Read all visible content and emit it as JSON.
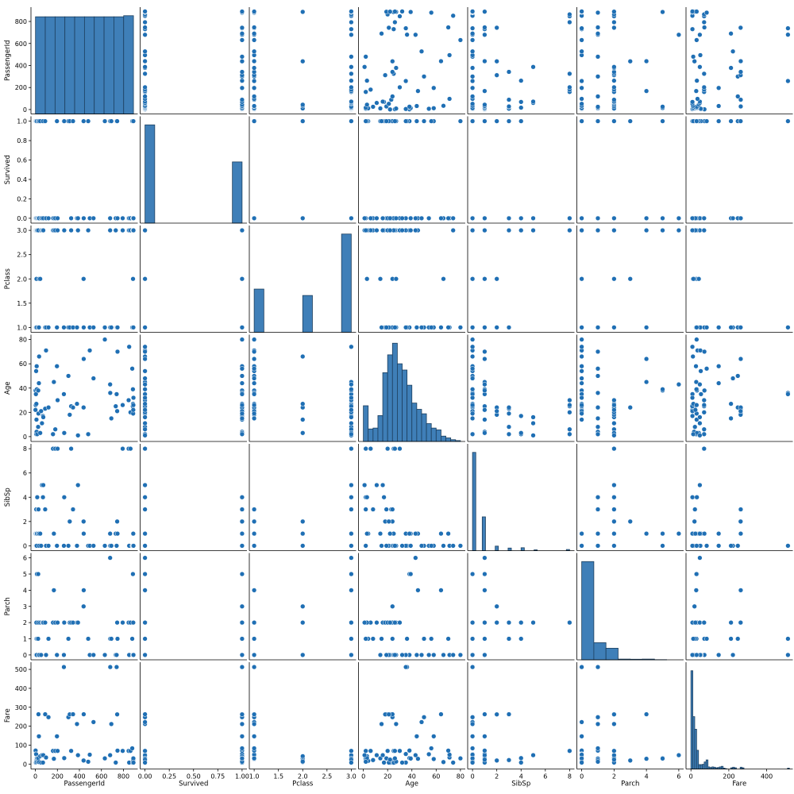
{
  "chart_data": {
    "type": "scatter",
    "title": "",
    "variables": [
      "PassengerId",
      "Survived",
      "Pclass",
      "Age",
      "SibSp",
      "Parch",
      "Fare"
    ],
    "colors": {
      "marker": "#1f6fb4",
      "marker_edge": "#ffffff",
      "bar": "#3f7fb8",
      "bar_edge": "#1d3f5e",
      "axis": "#000000"
    },
    "axes": [
      {
        "name": "PassengerId",
        "range": [
          -40,
          930
        ],
        "ticks": [
          0,
          200,
          400,
          600,
          800
        ],
        "tick_labels": [
          "0",
          "200",
          "400",
          "600",
          "800"
        ]
      },
      {
        "name": "Survived",
        "range": [
          -0.05,
          1.05
        ],
        "ticks": [
          0,
          0.25,
          0.5,
          0.75,
          1
        ],
        "tick_labels": [
          "0.00",
          "0.25",
          "0.50",
          "0.75",
          "1.00"
        ],
        "tick_labels_y": [
          "0.0",
          "",
          "0.5",
          "",
          "1.0"
        ],
        "tick_labels_y_full": [
          "0.0",
          "0.2",
          "0.4",
          "0.6",
          "0.8",
          "1.0"
        ]
      },
      {
        "name": "Pclass",
        "range": [
          0.9,
          3.1
        ],
        "ticks": [
          1,
          1.5,
          2,
          2.5,
          3
        ],
        "tick_labels": [
          "1.0",
          "1.5",
          "2.0",
          "2.5",
          "3.0"
        ]
      },
      {
        "name": "Age",
        "range": [
          -4,
          84
        ],
        "ticks": [
          0,
          20,
          40,
          60,
          80
        ],
        "tick_labels": [
          "0",
          "20",
          "40",
          "60",
          "80"
        ]
      },
      {
        "name": "SibSp",
        "range": [
          -0.4,
          8.4
        ],
        "ticks": [
          0,
          2,
          4,
          6,
          8
        ],
        "tick_labels": [
          "0",
          "2",
          "4",
          "6",
          "8"
        ]
      },
      {
        "name": "Parch",
        "range": [
          -0.3,
          6.3
        ],
        "ticks": [
          0,
          1,
          2,
          3,
          4,
          5,
          6
        ],
        "tick_labels": [
          "0",
          "1",
          "2",
          "3",
          "4",
          "5",
          "6"
        ]
      },
      {
        "name": "Fare",
        "range": [
          -26,
          538
        ],
        "ticks": [
          0,
          100,
          200,
          300,
          400,
          500
        ],
        "tick_labels": [
          "0",
          "100",
          "200",
          "300",
          "400",
          "500"
        ]
      }
    ],
    "x_ticks": {
      "PassengerId": [
        "0",
        "200",
        "400",
        "600",
        "800"
      ],
      "Survived": [
        "0.00",
        "0.25",
        "0.50",
        "0.75",
        "1.00"
      ],
      "Pclass": [
        "1.0",
        "1.5",
        "2.0",
        "2.5",
        "3.0"
      ],
      "Age": [
        "0",
        "20",
        "40",
        "60",
        "80"
      ],
      "SibSp": [
        "0",
        "2",
        "4",
        "6",
        "8"
      ],
      "Parch": [
        "0",
        "2",
        "4",
        "6"
      ],
      "Fare": [
        "0",
        "200",
        "400"
      ]
    },
    "y_ticks": {
      "PassengerId": [
        "0",
        "200",
        "400",
        "600",
        "800"
      ],
      "Survived": [
        "0.0",
        "0.2",
        "0.4",
        "0.6",
        "0.8",
        "1.0"
      ],
      "Pclass": [
        "1.0",
        "1.5",
        "2.0",
        "2.5",
        "3.0"
      ],
      "Age": [
        "0",
        "20",
        "40",
        "60",
        "80"
      ],
      "SibSp": [
        "0",
        "2",
        "4",
        "6",
        "8"
      ],
      "Parch": [
        "0",
        "1",
        "2",
        "3",
        "4",
        "5",
        "6"
      ],
      "Fare": [
        "0",
        "100",
        "200",
        "300",
        "400",
        "500"
      ]
    },
    "histograms": {
      "PassengerId": {
        "bins": [
          1,
          90,
          179,
          268,
          357,
          446,
          535,
          624,
          713,
          802,
          891
        ],
        "counts": [
          89,
          89,
          89,
          89,
          89,
          89,
          89,
          89,
          89,
          90
        ]
      },
      "Survived": {
        "bins": [
          0,
          0.1,
          0.2,
          0.3,
          0.4,
          0.5,
          0.6,
          0.7,
          0.8,
          0.9,
          1.0
        ],
        "counts": [
          549,
          0,
          0,
          0,
          0,
          0,
          0,
          0,
          0,
          342
        ]
      },
      "Pclass": {
        "bins": [
          1,
          1.2,
          1.4,
          1.6,
          1.8,
          2.0,
          2.2,
          2.4,
          2.6,
          2.8,
          3.0
        ],
        "counts": [
          216,
          0,
          0,
          0,
          0,
          184,
          0,
          0,
          0,
          491
        ]
      },
      "Age": {
        "bins": [
          0,
          4,
          8,
          12,
          16,
          20,
          24,
          28,
          32,
          36,
          40,
          44,
          48,
          52,
          56,
          60,
          64,
          68,
          72,
          76,
          80
        ],
        "counts": [
          40,
          14,
          15,
          29,
          77,
          97,
          110,
          87,
          80,
          63,
          43,
          36,
          31,
          20,
          15,
          13,
          6,
          4,
          2,
          1
        ]
      },
      "SibSp": {
        "bins": [
          0,
          0.27,
          0.53,
          0.8,
          1.07,
          1.33,
          1.6,
          1.87,
          2.13,
          2.4,
          2.67,
          2.93,
          3.2,
          3.47,
          3.73,
          4.0,
          4.27,
          4.53,
          4.8,
          5.07,
          5.33,
          5.6,
          5.87,
          6.13,
          6.4,
          6.67,
          6.93,
          7.2,
          7.47,
          7.73,
          8.0
        ],
        "counts": [
          608,
          0,
          0,
          209,
          0,
          0,
          0,
          28,
          0,
          0,
          0,
          16,
          0,
          0,
          0,
          18,
          0,
          0,
          0,
          5,
          0,
          0,
          0,
          0,
          0,
          0,
          0,
          0,
          0,
          7
        ]
      },
      "Parch": {
        "bins": [
          0,
          0.75,
          1.5,
          2.25,
          3.0,
          3.75,
          4.5,
          5.25,
          6.0
        ],
        "counts": [
          678,
          118,
          80,
          5,
          4,
          5,
          1,
          0
        ]
      },
      "Fare": {
        "bins": [
          0,
          10,
          20,
          30,
          40,
          50,
          60,
          70,
          80,
          90,
          100,
          110,
          120,
          130,
          140,
          150,
          160,
          170,
          180,
          190,
          200,
          210,
          220,
          230,
          240,
          250,
          260,
          270,
          280,
          290,
          300,
          310,
          320,
          330,
          340,
          350,
          360,
          370,
          380,
          390,
          400,
          410,
          420,
          430,
          440,
          450,
          460,
          470,
          480,
          490,
          500,
          510,
          520
        ],
        "counts": [
          336,
          179,
          136,
          64,
          15,
          15,
          16,
          24,
          31,
          7,
          5,
          7,
          6,
          4,
          5,
          7,
          9,
          3,
          1,
          0,
          0,
          4,
          6,
          4,
          0,
          0,
          6,
          4,
          0,
          0,
          0,
          0,
          0,
          0,
          0,
          0,
          0,
          0,
          0,
          0,
          0,
          0,
          0,
          0,
          0,
          0,
          0,
          0,
          0,
          0,
          0,
          3
        ]
      }
    },
    "points": [
      {
        "PassengerId": 1,
        "Survived": 0,
        "Pclass": 3,
        "Age": 22,
        "SibSp": 1,
        "Parch": 0,
        "Fare": 7.25
      },
      {
        "PassengerId": 2,
        "Survived": 1,
        "Pclass": 1,
        "Age": 38,
        "SibSp": 1,
        "Parch": 0,
        "Fare": 71.28
      },
      {
        "PassengerId": 3,
        "Survived": 1,
        "Pclass": 3,
        "Age": 26,
        "SibSp": 0,
        "Parch": 0,
        "Fare": 7.93
      },
      {
        "PassengerId": 4,
        "Survived": 1,
        "Pclass": 1,
        "Age": 35,
        "SibSp": 1,
        "Parch": 0,
        "Fare": 53.1
      },
      {
        "PassengerId": 5,
        "Survived": 0,
        "Pclass": 3,
        "Age": 35,
        "SibSp": 0,
        "Parch": 0,
        "Fare": 8.05
      },
      {
        "PassengerId": 7,
        "Survived": 0,
        "Pclass": 1,
        "Age": 54,
        "SibSp": 0,
        "Parch": 0,
        "Fare": 51.86
      },
      {
        "PassengerId": 8,
        "Survived": 0,
        "Pclass": 3,
        "Age": 2,
        "SibSp": 3,
        "Parch": 1,
        "Fare": 21.08
      },
      {
        "PassengerId": 9,
        "Survived": 1,
        "Pclass": 3,
        "Age": 27,
        "SibSp": 0,
        "Parch": 2,
        "Fare": 11.13
      },
      {
        "PassengerId": 10,
        "Survived": 1,
        "Pclass": 2,
        "Age": 14,
        "SibSp": 1,
        "Parch": 0,
        "Fare": 30.07
      },
      {
        "PassengerId": 11,
        "Survived": 1,
        "Pclass": 3,
        "Age": 4,
        "SibSp": 1,
        "Parch": 1,
        "Fare": 16.7
      },
      {
        "PassengerId": 12,
        "Survived": 1,
        "Pclass": 1,
        "Age": 58,
        "SibSp": 0,
        "Parch": 0,
        "Fare": 26.55
      },
      {
        "PassengerId": 14,
        "Survived": 0,
        "Pclass": 3,
        "Age": 39,
        "SibSp": 1,
        "Parch": 5,
        "Fare": 31.28
      },
      {
        "PassengerId": 17,
        "Survived": 0,
        "Pclass": 3,
        "Age": 2,
        "SibSp": 4,
        "Parch": 1,
        "Fare": 29.13
      },
      {
        "PassengerId": 25,
        "Survived": 0,
        "Pclass": 3,
        "Age": 8,
        "SibSp": 3,
        "Parch": 1,
        "Fare": 21.08
      },
      {
        "PassengerId": 26,
        "Survived": 1,
        "Pclass": 3,
        "Age": 38,
        "SibSp": 1,
        "Parch": 5,
        "Fare": 31.39
      },
      {
        "PassengerId": 28,
        "Survived": 0,
        "Pclass": 1,
        "Age": 19,
        "SibSp": 3,
        "Parch": 2,
        "Fare": 263
      },
      {
        "PassengerId": 32,
        "Survived": 1,
        "Pclass": 1,
        "Age": 44,
        "SibSp": 1,
        "Parch": 0,
        "Fare": 146.52
      },
      {
        "PassengerId": 34,
        "Survived": 0,
        "Pclass": 2,
        "Age": 66,
        "SibSp": 0,
        "Parch": 0,
        "Fare": 10.5
      },
      {
        "PassengerId": 44,
        "Survived": 1,
        "Pclass": 2,
        "Age": 3,
        "SibSp": 1,
        "Parch": 2,
        "Fare": 41.58
      },
      {
        "PassengerId": 52,
        "Survived": 0,
        "Pclass": 3,
        "Age": 21,
        "SibSp": 0,
        "Parch": 0,
        "Fare": 7.8
      },
      {
        "PassengerId": 60,
        "Survived": 0,
        "Pclass": 3,
        "Age": 11,
        "SibSp": 5,
        "Parch": 2,
        "Fare": 46.9
      },
      {
        "PassengerId": 69,
        "Survived": 1,
        "Pclass": 3,
        "Age": 17,
        "SibSp": 4,
        "Parch": 2,
        "Fare": 7.93
      },
      {
        "PassengerId": 72,
        "Survived": 0,
        "Pclass": 3,
        "Age": 16,
        "SibSp": 5,
        "Parch": 2,
        "Fare": 46.9
      },
      {
        "PassengerId": 89,
        "Survived": 1,
        "Pclass": 1,
        "Age": 23,
        "SibSp": 3,
        "Parch": 2,
        "Fare": 263
      },
      {
        "PassengerId": 97,
        "Survived": 0,
        "Pclass": 1,
        "Age": 71,
        "SibSp": 0,
        "Parch": 0,
        "Fare": 34.65
      },
      {
        "PassengerId": 119,
        "Survived": 0,
        "Pclass": 1,
        "Age": 24,
        "SibSp": 0,
        "Parch": 1,
        "Fare": 247.52
      },
      {
        "PassengerId": 160,
        "Survived": 0,
        "Pclass": 3,
        "Age": 2,
        "SibSp": 8,
        "Parch": 2,
        "Fare": 69.55
      },
      {
        "PassengerId": 168,
        "Survived": 0,
        "Pclass": 3,
        "Age": 45,
        "SibSp": 1,
        "Parch": 4,
        "Fare": 27.9
      },
      {
        "PassengerId": 181,
        "Survived": 0,
        "Pclass": 3,
        "Age": 6,
        "SibSp": 8,
        "Parch": 2,
        "Fare": 69.55
      },
      {
        "PassengerId": 196,
        "Survived": 1,
        "Pclass": 1,
        "Age": 58,
        "SibSp": 0,
        "Parch": 0,
        "Fare": 146.52
      },
      {
        "PassengerId": 202,
        "Survived": 0,
        "Pclass": 3,
        "Age": 30,
        "SibSp": 8,
        "Parch": 2,
        "Fare": 69.55
      },
      {
        "PassengerId": 259,
        "Survived": 1,
        "Pclass": 1,
        "Age": 35,
        "SibSp": 0,
        "Parch": 0,
        "Fare": 512.33
      },
      {
        "PassengerId": 262,
        "Survived": 1,
        "Pclass": 3,
        "Age": 3,
        "SibSp": 4,
        "Parch": 2,
        "Fare": 31.39
      },
      {
        "PassengerId": 300,
        "Survived": 1,
        "Pclass": 1,
        "Age": 50,
        "SibSp": 0,
        "Parch": 1,
        "Fare": 247.52
      },
      {
        "PassengerId": 312,
        "Survived": 1,
        "Pclass": 1,
        "Age": 18,
        "SibSp": 2,
        "Parch": 2,
        "Fare": 262.38
      },
      {
        "PassengerId": 325,
        "Survived": 0,
        "Pclass": 3,
        "Age": 25,
        "SibSp": 8,
        "Parch": 2,
        "Fare": 69.55
      },
      {
        "PassengerId": 342,
        "Survived": 1,
        "Pclass": 1,
        "Age": 24,
        "SibSp": 3,
        "Parch": 2,
        "Fare": 263
      },
      {
        "PassengerId": 378,
        "Survived": 0,
        "Pclass": 1,
        "Age": 27,
        "SibSp": 0,
        "Parch": 2,
        "Fare": 211.5
      },
      {
        "PassengerId": 387,
        "Survived": 0,
        "Pclass": 3,
        "Age": 1,
        "SibSp": 5,
        "Parch": 2,
        "Fare": 46.9
      },
      {
        "PassengerId": 439,
        "Survived": 0,
        "Pclass": 1,
        "Age": 64,
        "SibSp": 1,
        "Parch": 4,
        "Fare": 263
      },
      {
        "PassengerId": 438,
        "Survived": 1,
        "Pclass": 2,
        "Age": 24,
        "SibSp": 2,
        "Parch": 3,
        "Fare": 18.75
      },
      {
        "PassengerId": 480,
        "Survived": 1,
        "Pclass": 3,
        "Age": 2,
        "SibSp": 0,
        "Parch": 1,
        "Fare": 12.29
      },
      {
        "PassengerId": 494,
        "Survived": 0,
        "Pclass": 1,
        "Age": 71,
        "SibSp": 0,
        "Parch": 0,
        "Fare": 49.5
      },
      {
        "PassengerId": 528,
        "Survived": 0,
        "Pclass": 1,
        "Age": 48,
        "SibSp": 0,
        "Parch": 0,
        "Fare": 221.78
      },
      {
        "PassengerId": 631,
        "Survived": 1,
        "Pclass": 1,
        "Age": 80,
        "SibSp": 0,
        "Parch": 0,
        "Fare": 30
      },
      {
        "PassengerId": 679,
        "Survived": 0,
        "Pclass": 3,
        "Age": 43,
        "SibSp": 1,
        "Parch": 6,
        "Fare": 46.9
      },
      {
        "PassengerId": 680,
        "Survived": 1,
        "Pclass": 1,
        "Age": 36,
        "SibSp": 0,
        "Parch": 1,
        "Fare": 512.33
      },
      {
        "PassengerId": 690,
        "Survived": 1,
        "Pclass": 1,
        "Age": 15,
        "SibSp": 0,
        "Parch": 1,
        "Fare": 211.34
      },
      {
        "PassengerId": 730,
        "Survived": 0,
        "Pclass": 3,
        "Age": 25,
        "SibSp": 1,
        "Parch": 0,
        "Fare": 7.93
      },
      {
        "PassengerId": 738,
        "Survived": 1,
        "Pclass": 1,
        "Age": 35,
        "SibSp": 0,
        "Parch": 0,
        "Fare": 512.33
      },
      {
        "PassengerId": 743,
        "Survived": 1,
        "Pclass": 1,
        "Age": 21,
        "SibSp": 2,
        "Parch": 2,
        "Fare": 262.38
      },
      {
        "PassengerId": 746,
        "Survived": 0,
        "Pclass": 1,
        "Age": 70,
        "SibSp": 1,
        "Parch": 1,
        "Fare": 71
      },
      {
        "PassengerId": 793,
        "Survived": 0,
        "Pclass": 3,
        "Age": 26,
        "SibSp": 8,
        "Parch": 2,
        "Fare": 69.55
      },
      {
        "PassengerId": 847,
        "Survived": 0,
        "Pclass": 3,
        "Age": 30,
        "SibSp": 8,
        "Parch": 2,
        "Fare": 69.55
      },
      {
        "PassengerId": 852,
        "Survived": 0,
        "Pclass": 3,
        "Age": 74,
        "SibSp": 0,
        "Parch": 0,
        "Fare": 7.78
      },
      {
        "PassengerId": 864,
        "Survived": 0,
        "Pclass": 3,
        "Age": 20,
        "SibSp": 8,
        "Parch": 2,
        "Fare": 69.55
      },
      {
        "PassengerId": 880,
        "Survived": 1,
        "Pclass": 1,
        "Age": 56,
        "SibSp": 0,
        "Parch": 1,
        "Fare": 83.16
      },
      {
        "PassengerId": 885,
        "Survived": 0,
        "Pclass": 3,
        "Age": 25,
        "SibSp": 0,
        "Parch": 0,
        "Fare": 7.05
      },
      {
        "PassengerId": 886,
        "Survived": 0,
        "Pclass": 3,
        "Age": 39,
        "SibSp": 0,
        "Parch": 5,
        "Fare": 29.13
      },
      {
        "PassengerId": 887,
        "Survived": 0,
        "Pclass": 2,
        "Age": 27,
        "SibSp": 0,
        "Parch": 0,
        "Fare": 13
      },
      {
        "PassengerId": 888,
        "Survived": 1,
        "Pclass": 1,
        "Age": 19,
        "SibSp": 0,
        "Parch": 0,
        "Fare": 30
      },
      {
        "PassengerId": 889,
        "Survived": 0,
        "Pclass": 3,
        "Age": 22,
        "SibSp": 1,
        "Parch": 2,
        "Fare": 23.45
      },
      {
        "PassengerId": 890,
        "Survived": 1,
        "Pclass": 1,
        "Age": 26,
        "SibSp": 0,
        "Parch": 0,
        "Fare": 30
      },
      {
        "PassengerId": 891,
        "Survived": 0,
        "Pclass": 3,
        "Age": 32,
        "SibSp": 0,
        "Parch": 0,
        "Fare": 7.75
      }
    ]
  }
}
